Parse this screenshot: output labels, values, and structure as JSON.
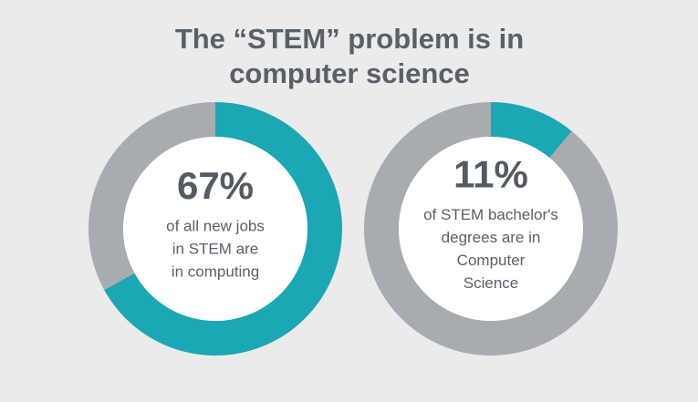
{
  "title": [
    "The “STEM” problem is in",
    "computer science"
  ],
  "chart_data": [
    {
      "type": "donut",
      "values": [
        67,
        33
      ],
      "colors": [
        "#1ba7b4",
        "#a8acb0"
      ],
      "label": "67%",
      "caption": [
        "of all new jobs",
        "in STEM are",
        "in computing"
      ]
    },
    {
      "type": "donut",
      "values": [
        11,
        89
      ],
      "colors": [
        "#1ba7b4",
        "#a8acb0"
      ],
      "label": "11%",
      "caption": [
        "of STEM bachelor's",
        "degrees are in",
        "Computer",
        "Science"
      ]
    }
  ]
}
